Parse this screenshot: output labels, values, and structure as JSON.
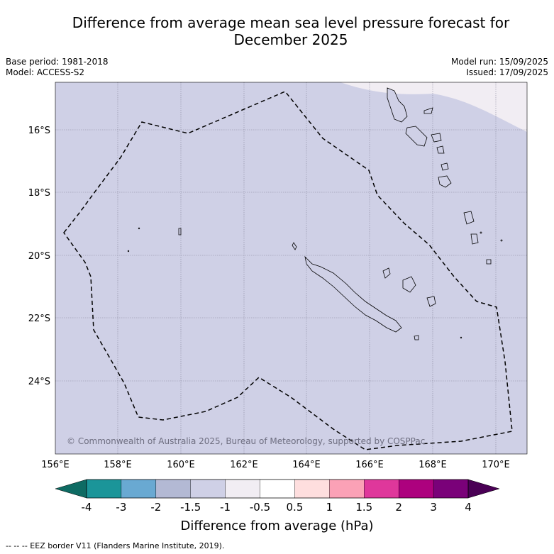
{
  "title_line1": "Difference from average mean sea level pressure forecast for",
  "title_line2": "December 2025",
  "base_period": "Base period: 1981-2018",
  "model": "Model: ACCESS-S2",
  "model_run": "Model run: 15/09/2025",
  "issued": "Issued: 17/09/2025",
  "lon_labels": [
    "156°E",
    "158°E",
    "160°E",
    "162°E",
    "164°E",
    "166°E",
    "168°E",
    "170°E"
  ],
  "lat_labels": [
    "16°S",
    "18°S",
    "20°S",
    "22°S",
    "24°S"
  ],
  "copyright": "© Commonwealth of Australia 2025, Bureau of Meteorology, supported by COSPPac",
  "colorbar": {
    "ticks": [
      "-4",
      "-3",
      "-2",
      "-1.5",
      "-1",
      "-0.5",
      "0.5",
      "1",
      "1.5",
      "2",
      "3",
      "4"
    ],
    "colors": [
      "#1b9599",
      "#69a9d2",
      "#b3b9d4",
      "#cfd0e6",
      "#f1edf3",
      "#ffffff",
      "#fedede",
      "#fba1b6",
      "#df379b",
      "#ad017e",
      "#7a0179"
    ],
    "under_color": "#0e6b63",
    "over_color": "#4a0055",
    "label": "Difference from average (hPa)"
  },
  "map_fill_main": "#cfd0e6",
  "map_fill_light": "#f1edf3",
  "legend_footer": "--  --  -- EEZ border V11 (Flanders Marine Institute, 2019)."
}
